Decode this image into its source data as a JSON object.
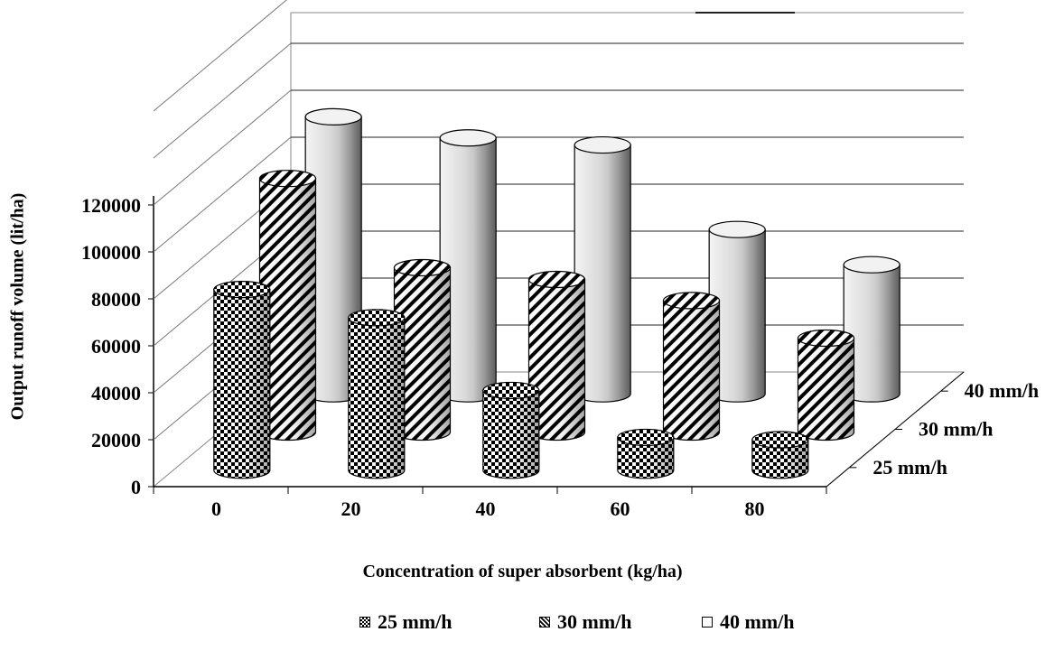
{
  "chart_data": {
    "type": "bar",
    "style": "3d-cylinder",
    "categories": [
      "0",
      "20",
      "40",
      "60",
      "80"
    ],
    "ylabel": "Output runoff volume (lit/ha)",
    "xlabel": "Concentration of super absorbent (kg/ha)",
    "y_ticks": [
      "0",
      "20000",
      "40000",
      "60000",
      "80000",
      "100000",
      "120000"
    ],
    "ylim": [
      0,
      120000
    ],
    "grid": true,
    "legend_position": "bottom",
    "series": [
      {
        "name": "25 mm/h",
        "values": [
          77000,
          65000,
          34000,
          14000,
          13000
        ],
        "pattern": "checkerboard"
      },
      {
        "name": "30 mm/h",
        "values": [
          108000,
          70000,
          65000,
          56000,
          40000
        ],
        "pattern": "diagonal-hatch"
      },
      {
        "name": "40 mm/h",
        "values": [
          118000,
          109000,
          106000,
          70000,
          55000
        ],
        "pattern": "light-gray"
      }
    ],
    "depth_labels": [
      "25 mm/h",
      "30 mm/h",
      "40 mm/h"
    ]
  },
  "legend": [
    {
      "label": "25 mm/h"
    },
    {
      "label": "30 mm/h"
    },
    {
      "label": "40 mm/h"
    }
  ]
}
